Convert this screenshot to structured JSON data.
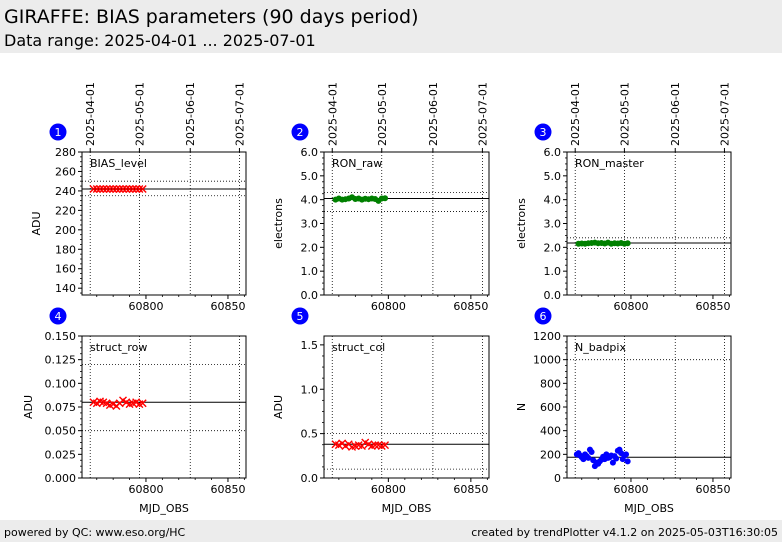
{
  "header": {
    "title": "GIRAFFE: BIAS parameters (90 days period)",
    "subtitle": "Data range: 2025-04-01 ... 2025-07-01"
  },
  "footer": {
    "left": "powered by QC: www.eso.org/HC",
    "right": "created by trendPlotter v4.1.2 on 2025-05-03T16:30:05"
  },
  "shared_x": {
    "label": "MJD_OBS",
    "range": [
      60761,
      60861
    ],
    "bottom_ticks": [
      60800,
      60850
    ],
    "date_ticks": [
      {
        "label": "2025-04-01",
        "mjd": 60766
      },
      {
        "label": "2025-05-01",
        "mjd": 60796
      },
      {
        "label": "2025-06-01",
        "mjd": 60827
      },
      {
        "label": "2025-07-01",
        "mjd": 60857
      }
    ]
  },
  "chart_data": [
    {
      "type": "scatter",
      "index": "1",
      "param": "BIAS_level",
      "ylabel": "ADU",
      "ylim": [
        133,
        280
      ],
      "yticks": [
        140,
        160,
        180,
        200,
        220,
        240,
        260,
        280
      ],
      "tick_decimals": 0,
      "marker": "x",
      "color": "#ff0000",
      "ref_line": 242,
      "dotted_lines": [
        250,
        235
      ],
      "x": [
        60768,
        60770,
        60772,
        60774,
        60776,
        60778,
        60780,
        60782,
        60784,
        60786,
        60788,
        60790,
        60792,
        60794,
        60796,
        60798
      ],
      "y": [
        242,
        242,
        242,
        242,
        242,
        242,
        242,
        242,
        242,
        242,
        242,
        242,
        242,
        242,
        242,
        242
      ]
    },
    {
      "type": "scatter",
      "index": "2",
      "param": "RON_raw",
      "ylabel": "electrons",
      "ylim": [
        0,
        6.0
      ],
      "yticks": [
        0,
        1,
        2,
        3,
        4,
        5,
        6
      ],
      "tick_decimals": 1,
      "marker": "dot",
      "color": "#008000",
      "ref_line": 4.05,
      "dotted_lines": [
        4.3,
        3.5
      ],
      "x": [
        60768,
        60770,
        60772,
        60774,
        60776,
        60778,
        60780,
        60782,
        60784,
        60786,
        60788,
        60790,
        60792,
        60794,
        60796,
        60798
      ],
      "y": [
        4.0,
        4.05,
        4.0,
        4.02,
        4.05,
        4.1,
        4.03,
        4.05,
        4.0,
        4.04,
        4.02,
        4.05,
        4.03,
        3.95,
        4.05,
        4.06
      ]
    },
    {
      "type": "scatter",
      "index": "3",
      "param": "RON_master",
      "ylabel": "electrons",
      "ylim": [
        0,
        6.0
      ],
      "yticks": [
        0,
        1,
        2,
        3,
        4,
        5,
        6
      ],
      "tick_decimals": 1,
      "marker": "dot",
      "color": "#008000",
      "ref_line": 2.18,
      "dotted_lines": [
        2.4,
        1.95
      ],
      "x": [
        60768,
        60770,
        60772,
        60774,
        60776,
        60778,
        60780,
        60782,
        60784,
        60786,
        60788,
        60790,
        60792,
        60794,
        60796,
        60798
      ],
      "y": [
        2.15,
        2.16,
        2.15,
        2.17,
        2.18,
        2.2,
        2.17,
        2.18,
        2.16,
        2.2,
        2.15,
        2.17,
        2.16,
        2.18,
        2.15,
        2.17
      ]
    },
    {
      "type": "scatter",
      "index": "4",
      "param": "struct_row",
      "ylabel": "ADU",
      "ylim": [
        0,
        0.15
      ],
      "yticks": [
        0,
        0.025,
        0.05,
        0.075,
        0.1,
        0.125,
        0.15
      ],
      "tick_decimals": 3,
      "marker": "x",
      "color": "#ff0000",
      "ref_line": 0.08,
      "dotted_lines": [
        0.12,
        0.05
      ],
      "x": [
        60768,
        60770,
        60772,
        60774,
        60776,
        60778,
        60780,
        60782,
        60784,
        60786,
        60788,
        60790,
        60792,
        60794,
        60796,
        60798
      ],
      "y": [
        0.08,
        0.079,
        0.081,
        0.08,
        0.079,
        0.077,
        0.078,
        0.076,
        0.079,
        0.082,
        0.08,
        0.078,
        0.079,
        0.08,
        0.078,
        0.079
      ]
    },
    {
      "type": "scatter",
      "index": "5",
      "param": "struct_col",
      "ylabel": "ADU",
      "ylim": [
        0,
        1.6
      ],
      "yticks": [
        0,
        0.5,
        1.0,
        1.5
      ],
      "tick_decimals": 1,
      "marker": "x",
      "color": "#ff0000",
      "ref_line": 0.38,
      "dotted_lines": [
        0.5,
        0.1
      ],
      "x": [
        60768,
        60770,
        60772,
        60774,
        60776,
        60778,
        60780,
        60782,
        60784,
        60786,
        60788,
        60790,
        60792,
        60794,
        60796,
        60798
      ],
      "y": [
        0.38,
        0.37,
        0.39,
        0.36,
        0.38,
        0.35,
        0.36,
        0.37,
        0.36,
        0.4,
        0.38,
        0.36,
        0.37,
        0.37,
        0.36,
        0.37
      ]
    },
    {
      "type": "scatter",
      "index": "6",
      "param": "N_badpix",
      "ylabel": "N",
      "ylim": [
        0,
        1200
      ],
      "yticks": [
        0,
        200,
        400,
        600,
        800,
        1000,
        1200
      ],
      "tick_decimals": 0,
      "marker": "dot",
      "color": "#0000ff",
      "ref_line": 175,
      "dotted_lines": [
        1000
      ],
      "x": [
        60767,
        60768,
        60769,
        60770,
        60771,
        60772,
        60773,
        60774,
        60775,
        60776,
        60777,
        60778,
        60779,
        60780,
        60781,
        60782,
        60783,
        60784,
        60785,
        60786,
        60787,
        60788,
        60789,
        60790,
        60791,
        60792,
        60793,
        60794,
        60795,
        60796,
        60797,
        60798
      ],
      "y": [
        200,
        210,
        190,
        175,
        160,
        200,
        185,
        170,
        240,
        220,
        150,
        100,
        130,
        120,
        140,
        155,
        180,
        160,
        200,
        170,
        175,
        190,
        130,
        185,
        165,
        230,
        240,
        210,
        160,
        190,
        200,
        140
      ]
    }
  ]
}
